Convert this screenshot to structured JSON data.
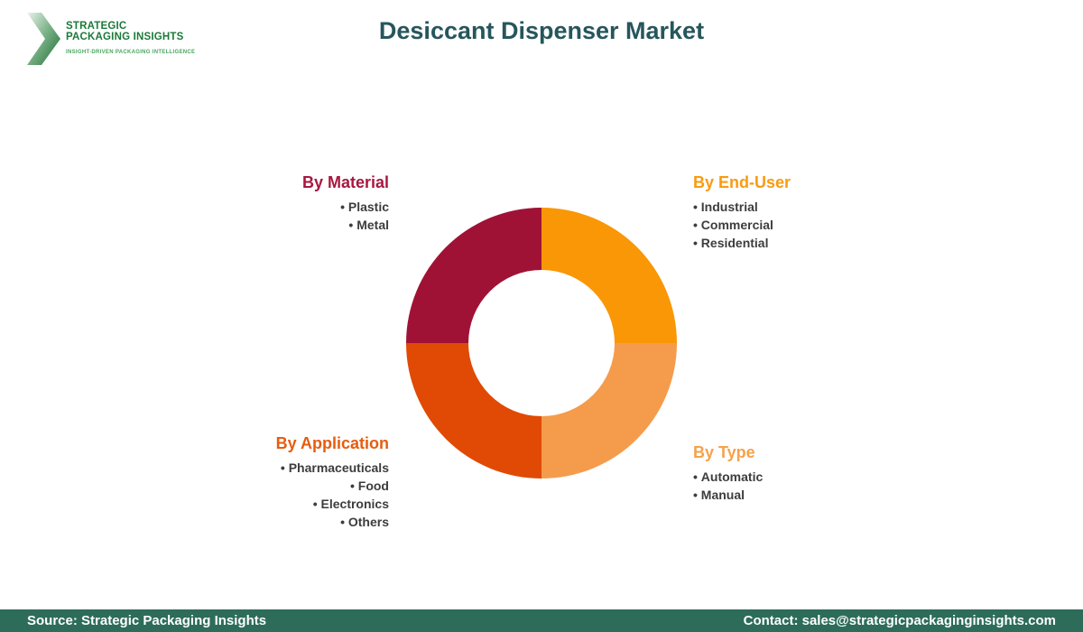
{
  "header": {
    "title": "Desiccant Dispenser Market"
  },
  "logo": {
    "line1": "STRATEGIC",
    "line2": "PACKAGING INSIGHTS",
    "tagline": "INSIGHT-DRIVEN PACKAGING INTELLIGENCE",
    "brand_green_dark": "#1A7A38",
    "brand_green_light": "#4AA661"
  },
  "chart_data": {
    "type": "pie",
    "title": "Desiccant Dispenser Market",
    "donut": true,
    "inner_radius_ratio": 0.54,
    "start_angle_deg": -90,
    "direction": "clockwise",
    "segments": [
      {
        "label": "By End-User",
        "value": 25,
        "color": "#F99706",
        "position": "top-right"
      },
      {
        "label": "By Type",
        "value": 25,
        "color": "#F49C4C",
        "position": "bottom-right"
      },
      {
        "label": "By Application",
        "value": 25,
        "color": "#E04A04",
        "position": "bottom-left"
      },
      {
        "label": "By Material",
        "value": 25,
        "color": "#A01235",
        "position": "top-left"
      }
    ]
  },
  "categories": [
    {
      "heading": "By Material",
      "color": "#A8173F",
      "items": [
        "Plastic",
        "Metal"
      ]
    },
    {
      "heading": "By End-User",
      "color": "#F99B10",
      "items": [
        "Industrial",
        "Commercial",
        "Residential"
      ]
    },
    {
      "heading": "By Application",
      "color": "#E65C0F",
      "items": [
        "Pharmaceuticals",
        "Food",
        "Electronics",
        "Others"
      ]
    },
    {
      "heading": "By Type",
      "color": "#F5A24B",
      "items": [
        "Automatic",
        "Manual"
      ]
    }
  ],
  "footer": {
    "source": "Source: Strategic Packaging Insights",
    "contact": "Contact: sales@strategicpackaginginsights.com",
    "bar_color": "#2D6C59"
  },
  "colors": {
    "title_teal": "#26565C"
  }
}
